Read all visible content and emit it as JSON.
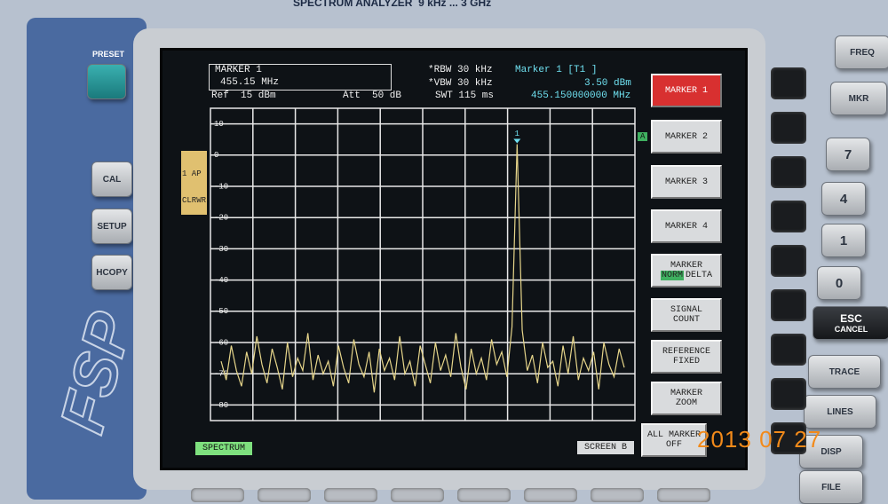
{
  "header": {
    "model": "SPECTRUM ANALYZER",
    "range": "9 kHz ... 3 GHz"
  },
  "front_panel": {
    "left_keys": [
      "PRESET",
      "CAL",
      "SETUP",
      "HCOPY"
    ],
    "logo": "FSP",
    "right_keys": [
      "FREQ",
      "MKR",
      "7",
      "4",
      "1",
      "0",
      "TRACE",
      "LINES",
      "DISP",
      "FILE"
    ],
    "esc": [
      "ESC",
      "CANCEL"
    ]
  },
  "screen": {
    "marker_box": [
      "MARKER 1",
      "455.15 MHz"
    ],
    "ref": "Ref  15 dBm",
    "att": "Att  50 dB",
    "rbw": "*RBW 30 kHz",
    "vbw": "*VBW 30 kHz",
    "swt": "SWT 115 ms",
    "marker_info": [
      "Marker 1 [T1 ]",
      "3.50 dBm",
      "455.150000000 MHz"
    ],
    "trace_info": [
      "1 AP",
      "CLRWR"
    ],
    "trace_flag": "A",
    "marker_symbol": "1",
    "softkeys": [
      [
        "MARKER 1"
      ],
      [
        "MARKER 2"
      ],
      [
        "MARKER 3"
      ],
      [
        "MARKER 4"
      ],
      [
        "MARKER",
        "NORM",
        "DELTA"
      ],
      [
        "SIGNAL",
        "COUNT"
      ],
      [
        "REFERENCE",
        "FIXED"
      ],
      [
        "MARKER",
        "ZOOM"
      ],
      [
        "ALL MARKER",
        "OFF"
      ]
    ],
    "mode": "SPECTRUM",
    "screen_label": "SCREEN B"
  },
  "chart_data": {
    "type": "line",
    "color": "#e6d58a",
    "ylim": [
      -85,
      15
    ],
    "yticks": [
      10,
      0,
      -10,
      -20,
      -30,
      -40,
      -50,
      -60,
      -70,
      -80
    ],
    "grid": true,
    "values": [
      -66,
      -72,
      -61,
      -69,
      -74,
      -63,
      -70,
      -58,
      -67,
      -73,
      -62,
      -68,
      -75,
      -60,
      -71,
      -65,
      -69,
      -57,
      -72,
      -64,
      -70,
      -66,
      -74,
      -61,
      -68,
      -73,
      -59,
      -67,
      -71,
      -63,
      -76,
      -62,
      -69,
      -65,
      -72,
      -58,
      -70,
      -66,
      -74,
      -61,
      -67,
      -73,
      -60,
      -69,
      -64,
      -71,
      -57,
      -68,
      -75,
      -62,
      -70,
      -65,
      -72,
      -59,
      -67,
      -63,
      -71,
      -55,
      3.5,
      -56,
      -69,
      -64,
      -73,
      -60,
      -68,
      -66,
      -74,
      -61,
      -70,
      -58,
      -72,
      -65,
      -69,
      -63,
      -75,
      -60,
      -67,
      -71,
      -62,
      -68
    ]
  },
  "timestamp": "2013 07 27"
}
